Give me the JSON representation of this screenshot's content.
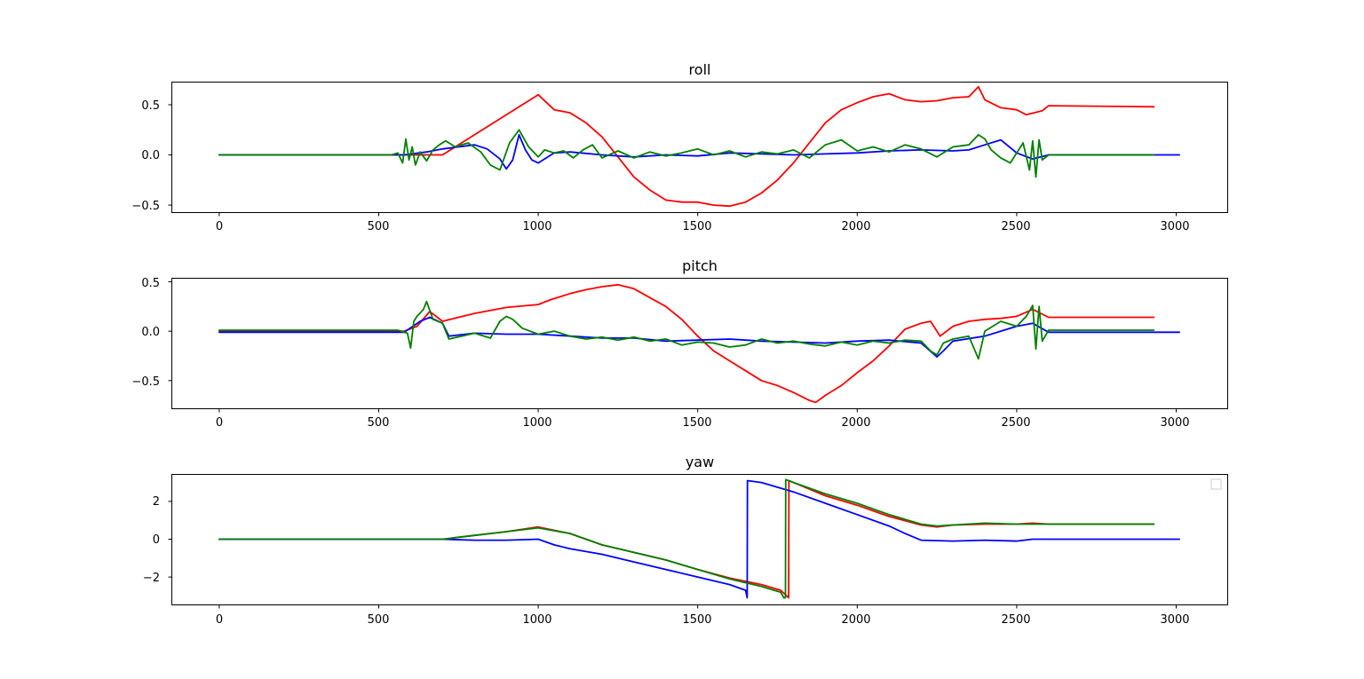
{
  "chart_data": [
    {
      "type": "line",
      "title": "roll",
      "xlim": [
        -150,
        3160
      ],
      "ylim": [
        -0.57,
        0.73
      ],
      "xticks": [
        0,
        500,
        1000,
        1500,
        2000,
        2500,
        3000
      ],
      "yticks": [
        -0.5,
        0.0,
        0.5
      ],
      "xtick_labels": [
        "0",
        "500",
        "1000",
        "1500",
        "2000",
        "2500",
        "3000"
      ],
      "ytick_labels": [
        "−0.5",
        "0.0",
        "0.5"
      ],
      "legend": "none",
      "series": [
        {
          "color": "#ff0000",
          "x": [
            0,
            700,
            800,
            1000,
            1050,
            1100,
            1150,
            1200,
            1250,
            1300,
            1350,
            1400,
            1450,
            1500,
            1550,
            1600,
            1650,
            1700,
            1750,
            1800,
            1850,
            1900,
            1950,
            2000,
            2050,
            2100,
            2150,
            2200,
            2250,
            2300,
            2350,
            2380,
            2400,
            2450,
            2500,
            2530,
            2580,
            2600,
            2930
          ],
          "y": [
            0.0,
            0.0,
            0.2,
            0.6,
            0.45,
            0.42,
            0.32,
            0.18,
            -0.02,
            -0.22,
            -0.35,
            -0.45,
            -0.47,
            -0.47,
            -0.5,
            -0.51,
            -0.47,
            -0.38,
            -0.25,
            -0.08,
            0.12,
            0.32,
            0.45,
            0.52,
            0.58,
            0.61,
            0.55,
            0.53,
            0.54,
            0.57,
            0.58,
            0.68,
            0.55,
            0.47,
            0.45,
            0.4,
            0.44,
            0.49,
            0.48
          ]
        },
        {
          "color": "#0000ff",
          "x": [
            0,
            580,
            650,
            700,
            750,
            800,
            840,
            880,
            900,
            920,
            940,
            960,
            980,
            1000,
            1050,
            1100,
            1200,
            1300,
            1400,
            1500,
            1600,
            1700,
            1800,
            1900,
            2000,
            2100,
            2200,
            2300,
            2350,
            2400,
            2450,
            2500,
            2550,
            2600,
            3010
          ],
          "y": [
            0.0,
            0.0,
            0.03,
            0.06,
            0.08,
            0.1,
            0.06,
            -0.04,
            -0.14,
            -0.05,
            0.2,
            0.05,
            -0.05,
            -0.08,
            0.02,
            0.03,
            0.0,
            -0.02,
            0.0,
            -0.01,
            0.02,
            0.01,
            0.0,
            0.01,
            0.02,
            0.04,
            0.05,
            0.04,
            0.05,
            0.1,
            0.15,
            0.02,
            -0.04,
            0.0,
            0.0
          ]
        },
        {
          "color": "#008000",
          "x": [
            0,
            540,
            560,
            575,
            585,
            595,
            605,
            615,
            630,
            650,
            670,
            690,
            710,
            740,
            780,
            820,
            850,
            880,
            910,
            940,
            970,
            1000,
            1020,
            1050,
            1080,
            1110,
            1140,
            1170,
            1200,
            1250,
            1300,
            1350,
            1400,
            1450,
            1500,
            1550,
            1600,
            1650,
            1700,
            1750,
            1800,
            1850,
            1900,
            1950,
            2000,
            2050,
            2100,
            2150,
            2200,
            2250,
            2300,
            2350,
            2380,
            2400,
            2420,
            2450,
            2480,
            2500,
            2520,
            2540,
            2550,
            2560,
            2570,
            2580,
            2600,
            2930
          ],
          "y": [
            0.0,
            0.0,
            0.02,
            -0.08,
            0.16,
            -0.05,
            0.08,
            -0.1,
            0.03,
            -0.06,
            0.05,
            0.1,
            0.14,
            0.08,
            0.12,
            0.03,
            -0.1,
            -0.15,
            0.12,
            0.25,
            0.08,
            -0.02,
            0.05,
            0.02,
            0.04,
            -0.03,
            0.05,
            0.1,
            -0.03,
            0.04,
            -0.03,
            0.03,
            -0.01,
            0.02,
            0.06,
            0.0,
            0.04,
            -0.02,
            0.03,
            0.01,
            0.05,
            -0.03,
            0.1,
            0.15,
            0.04,
            0.08,
            0.03,
            0.1,
            0.06,
            -0.02,
            0.08,
            0.1,
            0.2,
            0.16,
            0.05,
            -0.03,
            -0.08,
            0.02,
            0.12,
            -0.15,
            0.14,
            -0.22,
            0.15,
            -0.05,
            0.0,
            0.0
          ]
        }
      ]
    },
    {
      "type": "line",
      "title": "pitch",
      "xlim": [
        -150,
        3160
      ],
      "ylim": [
        -0.78,
        0.54
      ],
      "xticks": [
        0,
        500,
        1000,
        1500,
        2000,
        2500,
        3000
      ],
      "yticks": [
        -0.5,
        0.0,
        0.5
      ],
      "xtick_labels": [
        "0",
        "500",
        "1000",
        "1500",
        "2000",
        "2500",
        "3000"
      ],
      "ytick_labels": [
        "−0.5",
        "0.0",
        "0.5"
      ],
      "legend": "none",
      "series": [
        {
          "color": "#ff0000",
          "x": [
            0,
            580,
            620,
            660,
            700,
            800,
            900,
            1000,
            1040,
            1100,
            1150,
            1200,
            1250,
            1300,
            1350,
            1400,
            1450,
            1500,
            1550,
            1600,
            1650,
            1700,
            1750,
            1800,
            1850,
            1870,
            1900,
            1950,
            2000,
            2050,
            2100,
            2150,
            2200,
            2230,
            2260,
            2300,
            2350,
            2400,
            2450,
            2500,
            2550,
            2600,
            2930
          ],
          "y": [
            0.0,
            0.0,
            0.05,
            0.2,
            0.1,
            0.18,
            0.24,
            0.27,
            0.32,
            0.38,
            0.42,
            0.45,
            0.47,
            0.43,
            0.34,
            0.25,
            0.12,
            -0.05,
            -0.2,
            -0.3,
            -0.4,
            -0.5,
            -0.55,
            -0.62,
            -0.7,
            -0.72,
            -0.65,
            -0.55,
            -0.42,
            -0.3,
            -0.15,
            0.02,
            0.08,
            0.1,
            -0.05,
            0.05,
            0.1,
            0.12,
            0.13,
            0.15,
            0.22,
            0.14,
            0.14
          ]
        },
        {
          "color": "#0000ff",
          "x": [
            0,
            580,
            630,
            660,
            700,
            720,
            800,
            900,
            1000,
            1100,
            1200,
            1300,
            1400,
            1500,
            1600,
            1700,
            1800,
            1900,
            2000,
            2100,
            2200,
            2250,
            2270,
            2300,
            2400,
            2500,
            2550,
            2600,
            3010
          ],
          "y": [
            -0.01,
            -0.01,
            0.1,
            0.14,
            0.08,
            -0.05,
            -0.02,
            -0.03,
            -0.03,
            -0.05,
            -0.07,
            -0.07,
            -0.1,
            -0.09,
            -0.08,
            -0.1,
            -0.11,
            -0.12,
            -0.1,
            -0.09,
            -0.12,
            -0.26,
            -0.2,
            -0.1,
            -0.05,
            0.05,
            0.08,
            -0.01,
            -0.01
          ]
        },
        {
          "color": "#008000",
          "x": [
            0,
            560,
            590,
            600,
            610,
            620,
            640,
            650,
            670,
            700,
            720,
            760,
            800,
            850,
            880,
            900,
            920,
            950,
            1000,
            1050,
            1100,
            1150,
            1200,
            1250,
            1300,
            1350,
            1400,
            1450,
            1500,
            1550,
            1600,
            1650,
            1700,
            1750,
            1800,
            1850,
            1900,
            1950,
            2000,
            2050,
            2100,
            2150,
            2200,
            2230,
            2250,
            2270,
            2300,
            2350,
            2380,
            2400,
            2450,
            2500,
            2530,
            2550,
            2560,
            2570,
            2580,
            2600,
            2930
          ],
          "y": [
            0.01,
            0.01,
            -0.02,
            -0.17,
            0.1,
            0.15,
            0.22,
            0.3,
            0.12,
            0.08,
            -0.08,
            -0.05,
            -0.02,
            -0.07,
            0.1,
            0.15,
            0.12,
            0.03,
            -0.03,
            0.0,
            -0.05,
            -0.08,
            -0.06,
            -0.09,
            -0.06,
            -0.1,
            -0.08,
            -0.14,
            -0.11,
            -0.12,
            -0.16,
            -0.14,
            -0.08,
            -0.12,
            -0.1,
            -0.13,
            -0.15,
            -0.11,
            -0.14,
            -0.1,
            -0.12,
            -0.09,
            -0.1,
            -0.2,
            -0.24,
            -0.12,
            -0.08,
            -0.05,
            -0.28,
            0.0,
            0.1,
            0.05,
            0.15,
            0.26,
            -0.18,
            0.25,
            -0.1,
            0.01,
            0.01
          ]
        }
      ]
    },
    {
      "type": "line",
      "title": "yaw",
      "xlim": [
        -150,
        3160
      ],
      "ylim": [
        -3.45,
        3.45
      ],
      "xticks": [
        0,
        500,
        1000,
        1500,
        2000,
        2500,
        3000
      ],
      "yticks": [
        -2,
        0,
        2
      ],
      "xtick_labels": [
        "0",
        "500",
        "1000",
        "1500",
        "2000",
        "2500",
        "3000"
      ],
      "ytick_labels": [
        "−2",
        "0",
        "2"
      ],
      "legend": "top-right (empty)",
      "series": [
        {
          "color": "#ff0000",
          "x": [
            0,
            600,
            700,
            800,
            900,
            1000,
            1100,
            1200,
            1300,
            1400,
            1500,
            1600,
            1700,
            1760,
            1785,
            1786,
            1800,
            1900,
            2000,
            2100,
            2200,
            2250,
            2300,
            2400,
            2500,
            2550,
            2600,
            2930
          ],
          "y": [
            0.0,
            0.0,
            0.0,
            0.2,
            0.4,
            0.65,
            0.3,
            -0.3,
            -0.7,
            -1.1,
            -1.6,
            -2.05,
            -2.4,
            -2.7,
            -3.1,
            3.1,
            3.0,
            2.3,
            1.8,
            1.2,
            0.75,
            0.65,
            0.75,
            0.8,
            0.8,
            0.85,
            0.8,
            0.8
          ]
        },
        {
          "color": "#0000ff",
          "x": [
            0,
            700,
            800,
            900,
            1000,
            1050,
            1100,
            1200,
            1300,
            1400,
            1500,
            1600,
            1650,
            1655,
            1656,
            1700,
            1800,
            1900,
            2000,
            2100,
            2150,
            2200,
            2300,
            2400,
            2500,
            2550,
            2600,
            3010
          ],
          "y": [
            0.0,
            0.0,
            -0.05,
            -0.05,
            0.0,
            -0.3,
            -0.5,
            -0.8,
            -1.2,
            -1.6,
            -2.0,
            -2.4,
            -2.7,
            -3.1,
            3.1,
            3.0,
            2.5,
            1.9,
            1.3,
            0.7,
            0.3,
            -0.05,
            -0.1,
            -0.05,
            -0.1,
            0.0,
            0.0,
            0.0
          ]
        },
        {
          "color": "#008000",
          "x": [
            0,
            600,
            700,
            800,
            900,
            1000,
            1100,
            1200,
            1300,
            1400,
            1500,
            1600,
            1700,
            1760,
            1770,
            1775,
            1776,
            1800,
            1900,
            2000,
            2100,
            2200,
            2250,
            2300,
            2400,
            2500,
            2550,
            2600,
            2930
          ],
          "y": [
            0.0,
            0.0,
            0.0,
            0.2,
            0.4,
            0.6,
            0.3,
            -0.3,
            -0.7,
            -1.1,
            -1.6,
            -2.1,
            -2.5,
            -2.8,
            -3.1,
            -3.1,
            3.15,
            3.0,
            2.4,
            1.9,
            1.3,
            0.8,
            0.7,
            0.75,
            0.85,
            0.8,
            0.8,
            0.8,
            0.8
          ]
        }
      ]
    }
  ]
}
